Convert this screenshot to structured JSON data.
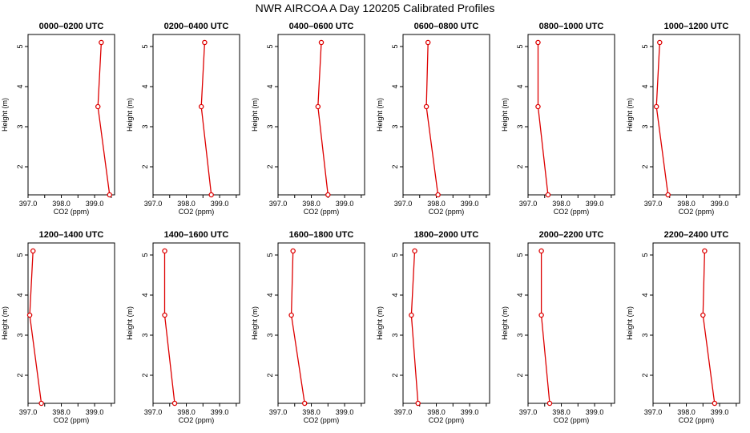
{
  "title": "NWR AIRCOA A  Day 120205  Calibrated Profiles",
  "colors": {
    "line": "#dd0000",
    "marker": "#dd0000",
    "axis": "#000000"
  },
  "chart_data": [
    {
      "type": "line",
      "title": "0000–0200 UTC",
      "xlabel": "CO2 (ppm)",
      "ylabel": "Height (m)",
      "xlim": [
        397.0,
        399.6
      ],
      "ylim": [
        1.3,
        5.3
      ],
      "xticks": [
        "397.0",
        "398.0",
        "399.0"
      ],
      "yticks": [
        "2",
        "3",
        "4",
        "5"
      ],
      "series": [
        {
          "name": "profile",
          "x": [
            399.45,
            399.1,
            399.2
          ],
          "y": [
            1.3,
            3.5,
            5.1
          ]
        }
      ]
    },
    {
      "type": "line",
      "title": "0200–0400 UTC",
      "xlabel": "CO2 (ppm)",
      "ylabel": "Height (m)",
      "xlim": [
        397.0,
        399.6
      ],
      "ylim": [
        1.3,
        5.3
      ],
      "xticks": [
        "397.0",
        "398.0",
        "399.0"
      ],
      "yticks": [
        "2",
        "3",
        "4",
        "5"
      ],
      "series": [
        {
          "name": "profile",
          "x": [
            398.75,
            398.45,
            398.55
          ],
          "y": [
            1.3,
            3.5,
            5.1
          ]
        }
      ]
    },
    {
      "type": "line",
      "title": "0400–0600 UTC",
      "xlabel": "CO2 (ppm)",
      "ylabel": "Height (m)",
      "xlim": [
        397.0,
        399.6
      ],
      "ylim": [
        1.3,
        5.3
      ],
      "xticks": [
        "397.0",
        "398.0",
        "399.0"
      ],
      "yticks": [
        "2",
        "3",
        "4",
        "5"
      ],
      "series": [
        {
          "name": "profile",
          "x": [
            398.5,
            398.2,
            398.3
          ],
          "y": [
            1.3,
            3.5,
            5.1
          ]
        }
      ]
    },
    {
      "type": "line",
      "title": "0600–0800 UTC",
      "xlabel": "CO2 (ppm)",
      "ylabel": "Height (m)",
      "xlim": [
        397.0,
        399.6
      ],
      "ylim": [
        1.3,
        5.3
      ],
      "xticks": [
        "397.0",
        "398.0",
        "399.0"
      ],
      "yticks": [
        "2",
        "3",
        "4",
        "5"
      ],
      "series": [
        {
          "name": "profile",
          "x": [
            398.05,
            397.7,
            397.75
          ],
          "y": [
            1.3,
            3.5,
            5.1
          ]
        }
      ]
    },
    {
      "type": "line",
      "title": "0800–1000 UTC",
      "xlabel": "CO2 (ppm)",
      "ylabel": "Height (m)",
      "xlim": [
        397.0,
        399.6
      ],
      "ylim": [
        1.3,
        5.3
      ],
      "xticks": [
        "397.0",
        "398.0",
        "399.0"
      ],
      "yticks": [
        "2",
        "3",
        "4",
        "5"
      ],
      "series": [
        {
          "name": "profile",
          "x": [
            397.6,
            397.3,
            397.3
          ],
          "y": [
            1.3,
            3.5,
            5.1
          ]
        }
      ]
    },
    {
      "type": "line",
      "title": "1000–1200 UTC",
      "xlabel": "CO2 (ppm)",
      "ylabel": "Height (m)",
      "xlim": [
        397.0,
        399.6
      ],
      "ylim": [
        1.3,
        5.3
      ],
      "xticks": [
        "397.0",
        "398.0",
        "399.0"
      ],
      "yticks": [
        "2",
        "3",
        "4",
        "5"
      ],
      "series": [
        {
          "name": "profile",
          "x": [
            397.45,
            397.1,
            397.2
          ],
          "y": [
            1.3,
            3.5,
            5.1
          ]
        }
      ]
    },
    {
      "type": "line",
      "title": "1200–1400 UTC",
      "xlabel": "CO2 (ppm)",
      "ylabel": "Height (m)",
      "xlim": [
        397.0,
        399.6
      ],
      "ylim": [
        1.3,
        5.3
      ],
      "xticks": [
        "397.0",
        "398.0",
        "399.0"
      ],
      "yticks": [
        "2",
        "3",
        "4",
        "5"
      ],
      "series": [
        {
          "name": "profile",
          "x": [
            397.4,
            397.05,
            397.15
          ],
          "y": [
            1.3,
            3.5,
            5.1
          ]
        }
      ]
    },
    {
      "type": "line",
      "title": "1400–1600 UTC",
      "xlabel": "CO2 (ppm)",
      "ylabel": "Height (m)",
      "xlim": [
        397.0,
        399.6
      ],
      "ylim": [
        1.3,
        5.3
      ],
      "xticks": [
        "397.0",
        "398.0",
        "399.0"
      ],
      "yticks": [
        "2",
        "3",
        "4",
        "5"
      ],
      "series": [
        {
          "name": "profile",
          "x": [
            397.65,
            397.35,
            397.35
          ],
          "y": [
            1.3,
            3.5,
            5.1
          ]
        }
      ]
    },
    {
      "type": "line",
      "title": "1600–1800 UTC",
      "xlabel": "CO2 (ppm)",
      "ylabel": "Height (m)",
      "xlim": [
        397.0,
        399.6
      ],
      "ylim": [
        1.3,
        5.3
      ],
      "xticks": [
        "397.0",
        "398.0",
        "399.0"
      ],
      "yticks": [
        "2",
        "3",
        "4",
        "5"
      ],
      "series": [
        {
          "name": "profile",
          "x": [
            397.8,
            397.4,
            397.45
          ],
          "y": [
            1.3,
            3.5,
            5.1
          ]
        }
      ]
    },
    {
      "type": "line",
      "title": "1800–2000 UTC",
      "xlabel": "CO2 (ppm)",
      "ylabel": "Height (m)",
      "xlim": [
        397.0,
        399.6
      ],
      "ylim": [
        1.3,
        5.3
      ],
      "xticks": [
        "397.0",
        "398.0",
        "399.0"
      ],
      "yticks": [
        "2",
        "3",
        "4",
        "5"
      ],
      "series": [
        {
          "name": "profile",
          "x": [
            397.45,
            397.25,
            397.35
          ],
          "y": [
            1.3,
            3.5,
            5.1
          ]
        }
      ]
    },
    {
      "type": "line",
      "title": "2000–2200 UTC",
      "xlabel": "CO2 (ppm)",
      "ylabel": "Height (m)",
      "xlim": [
        397.0,
        399.6
      ],
      "ylim": [
        1.3,
        5.3
      ],
      "xticks": [
        "397.0",
        "398.0",
        "399.0"
      ],
      "yticks": [
        "2",
        "3",
        "4",
        "5"
      ],
      "series": [
        {
          "name": "profile",
          "x": [
            397.65,
            397.4,
            397.4
          ],
          "y": [
            1.3,
            3.5,
            5.1
          ]
        }
      ]
    },
    {
      "type": "line",
      "title": "2200–2400 UTC",
      "xlabel": "CO2 (ppm)",
      "ylabel": "Height (m)",
      "xlim": [
        397.0,
        399.6
      ],
      "ylim": [
        1.3,
        5.3
      ],
      "xticks": [
        "397.0",
        "398.0",
        "399.0"
      ],
      "yticks": [
        "2",
        "3",
        "4",
        "5"
      ],
      "series": [
        {
          "name": "profile",
          "x": [
            398.85,
            398.5,
            398.55
          ],
          "y": [
            1.3,
            3.5,
            5.1
          ]
        }
      ]
    }
  ]
}
